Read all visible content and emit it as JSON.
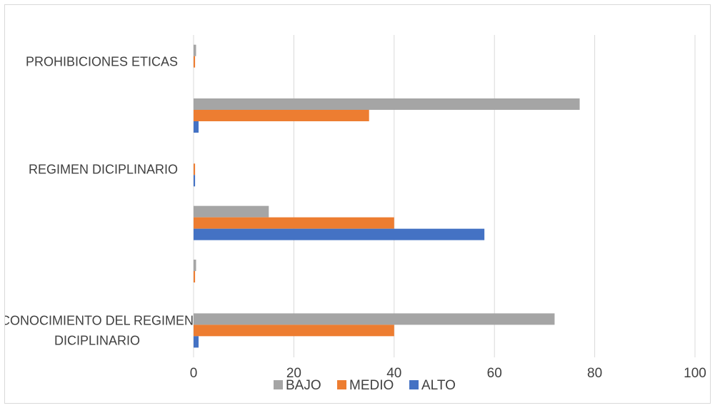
{
  "chart_data": {
    "type": "bar",
    "orientation": "horizontal",
    "categories": [
      "CONOCIMIENTO DEL REGIMEN DICIPLINARIO",
      "",
      "",
      "REGIMEN DICIPLINARIO",
      "",
      "PROHIBICIONES ETICAS"
    ],
    "series": [
      {
        "name": "BAJO",
        "color": "#a5a5a5",
        "values": [
          72,
          0.5,
          15,
          0,
          77,
          0.5
        ]
      },
      {
        "name": "MEDIO",
        "color": "#ed7d31",
        "values": [
          40,
          0.3,
          40,
          0.3,
          35,
          0.3
        ]
      },
      {
        "name": "ALTO",
        "color": "#4472c4",
        "values": [
          1,
          0,
          58,
          0.3,
          1,
          0
        ]
      }
    ],
    "xlim": [
      0,
      100
    ],
    "xticks": [
      "0",
      "20",
      "40",
      "60",
      "80",
      "100"
    ],
    "grid": true,
    "legend": "bottom"
  }
}
